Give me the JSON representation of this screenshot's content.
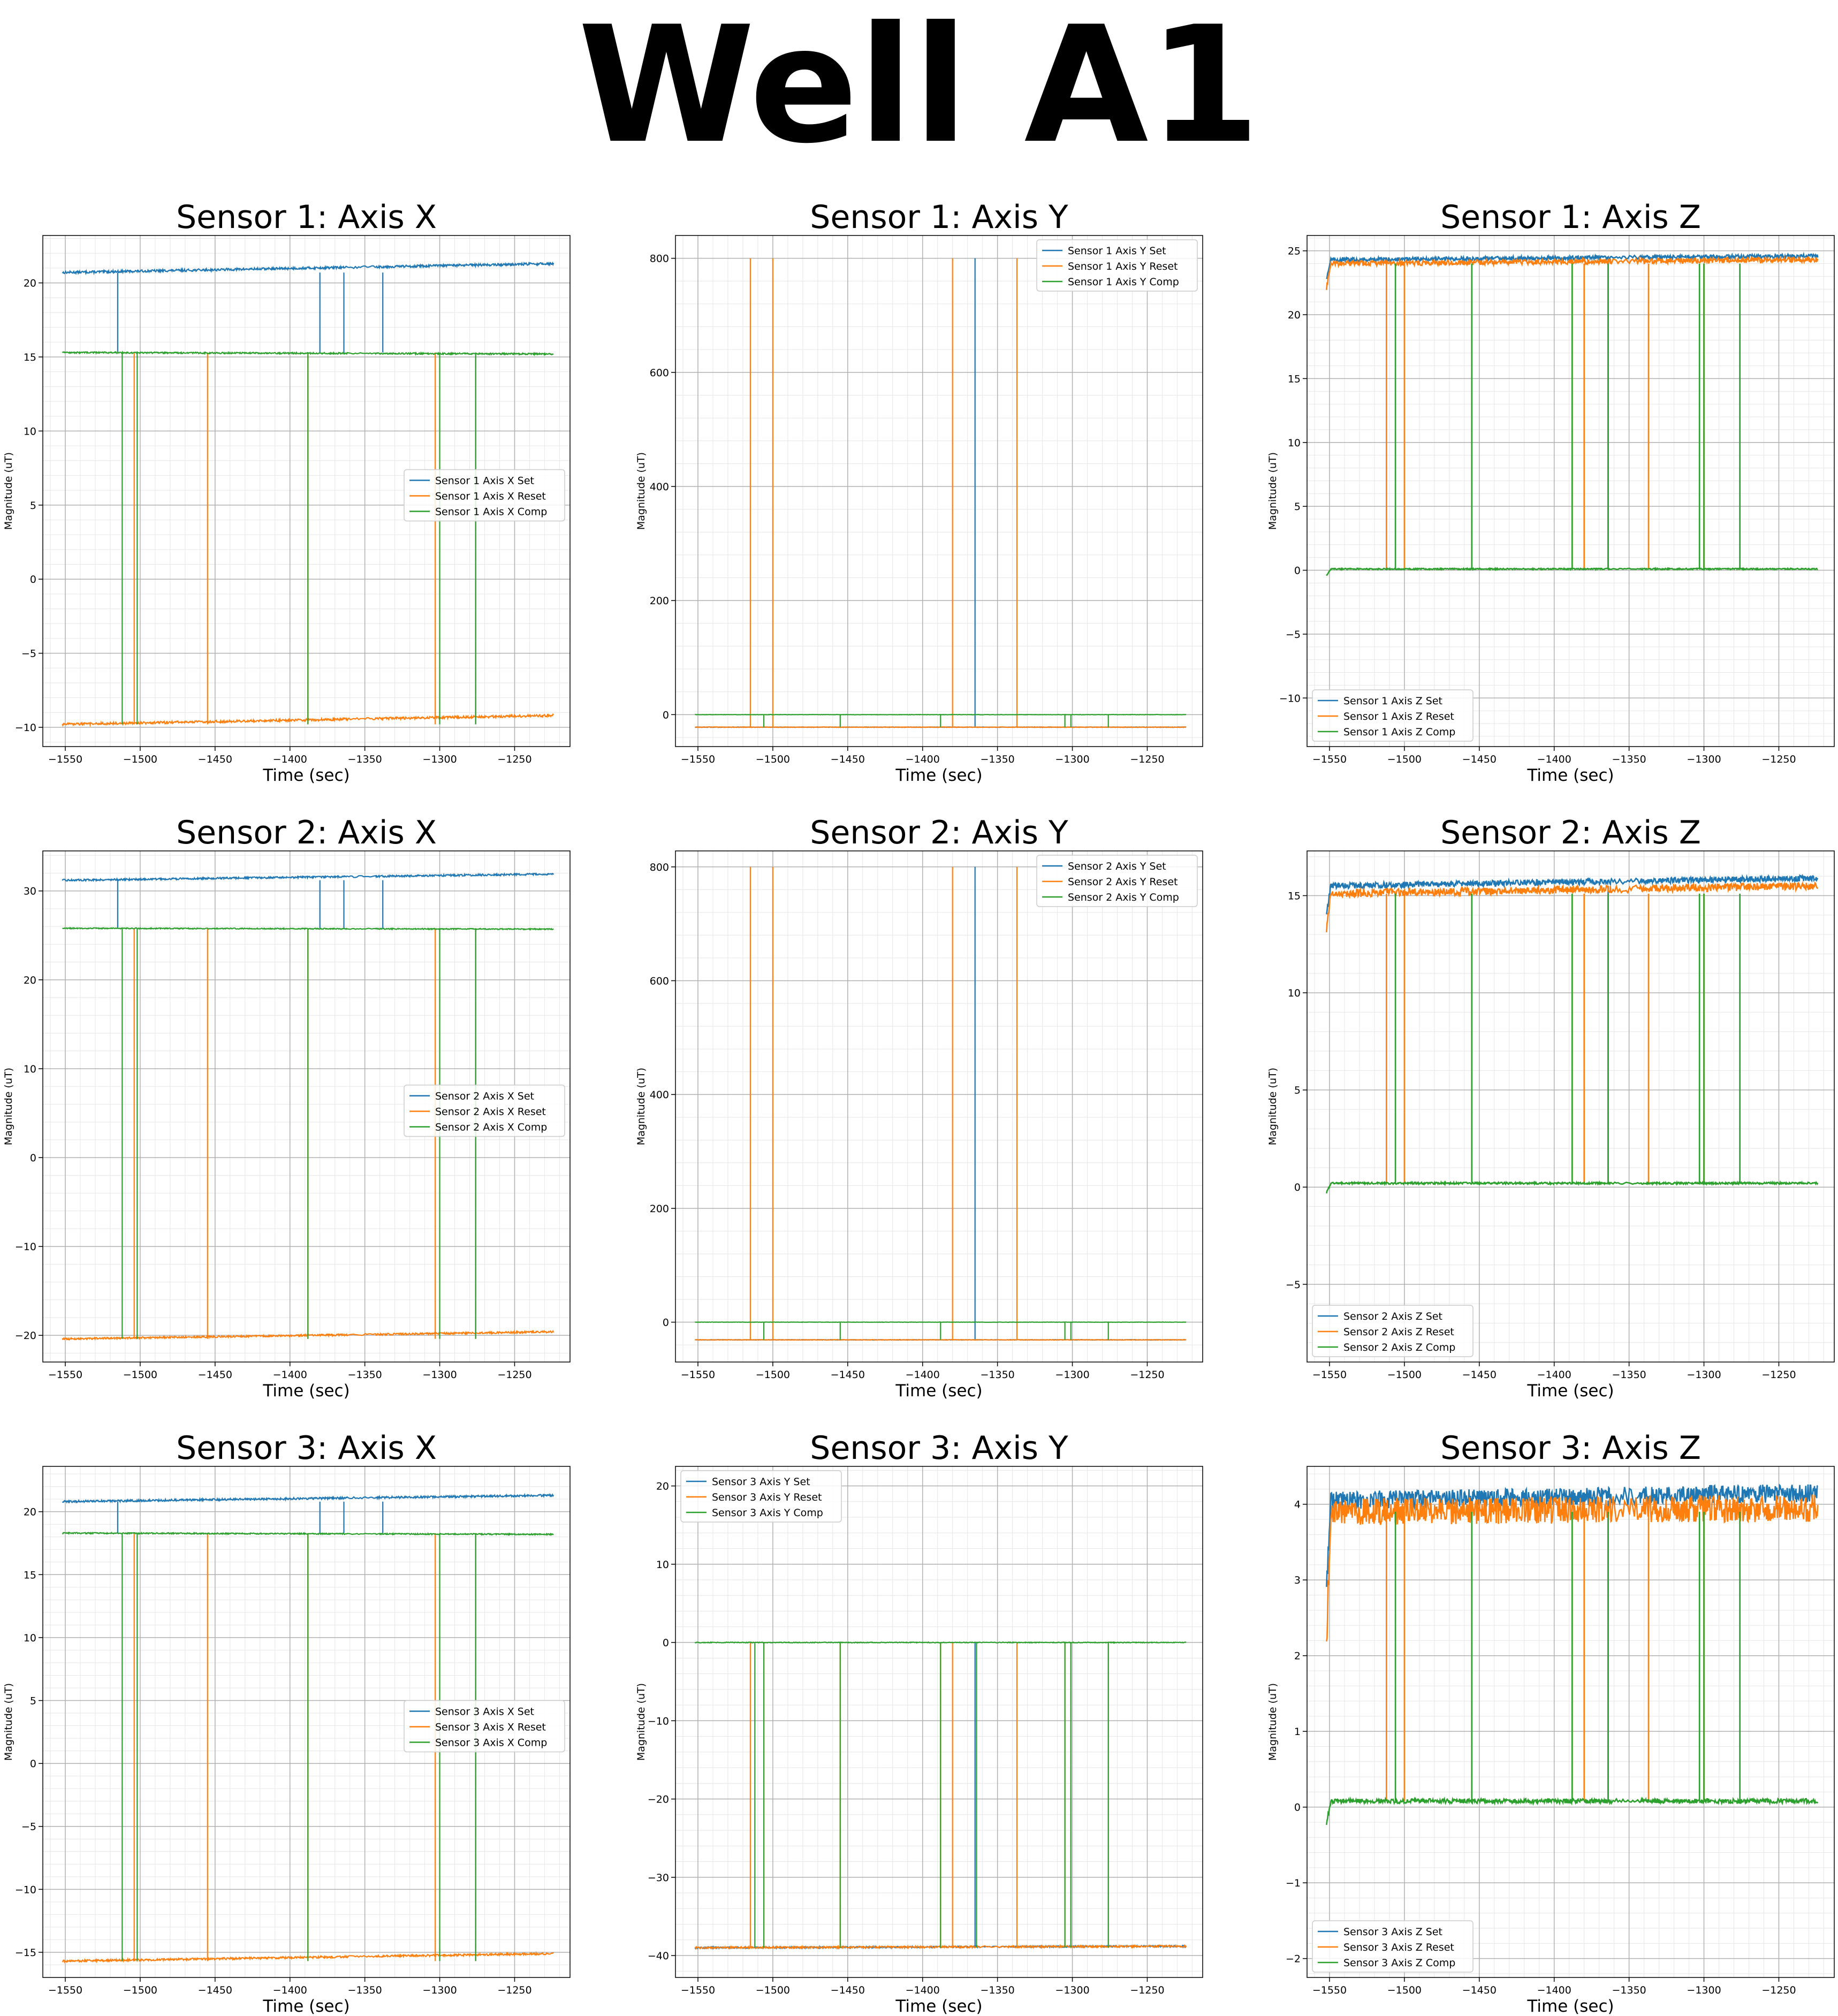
{
  "suptitle": "Well A1",
  "colors": {
    "set": "#1f77b4",
    "reset": "#ff7f0e",
    "comp": "#2ca02c"
  },
  "chart_data": [
    {
      "type": "line",
      "title": "Sensor 1: Axis X",
      "xlabel": "Time (sec)",
      "ylabel": "Magnitude (uT)",
      "xlim": [
        -1565,
        -1213
      ],
      "ylim": [
        -11.3,
        23.2
      ],
      "xticks": [
        -1550,
        -1500,
        -1450,
        -1400,
        -1350,
        -1300,
        -1250
      ],
      "yticks": [
        -10,
        -5,
        0,
        5,
        10,
        15,
        20
      ],
      "grid": true,
      "legend": "center-right",
      "spike_times": {
        "set": [
          -1515,
          -1380,
          -1364,
          -1338
        ],
        "reset": [
          -1504,
          -1455,
          -1388,
          -1303,
          -1276
        ],
        "comp": [
          -1512,
          -1502,
          -1388,
          -1300,
          -1276
        ]
      },
      "series": [
        {
          "name": "Sensor 1 Axis X Set",
          "color": "#1f77b4",
          "start": 20.7,
          "end": 21.3,
          "noise": 0.08
        },
        {
          "name": "Sensor 1 Axis X Reset",
          "color": "#ff7f0e",
          "start": -9.8,
          "end": -9.2,
          "noise": 0.08
        },
        {
          "name": "Sensor 1 Axis X Comp",
          "color": "#2ca02c",
          "start": 15.3,
          "end": 15.2,
          "noise": 0.05
        }
      ]
    },
    {
      "type": "line",
      "title": "Sensor 1: Axis Y",
      "xlabel": "Time (sec)",
      "ylabel": "Magnitude (uT)",
      "xlim": [
        -1565,
        -1213
      ],
      "ylim": [
        -56,
        840
      ],
      "xticks": [
        -1550,
        -1500,
        -1450,
        -1400,
        -1350,
        -1300,
        -1250
      ],
      "yticks": [
        0,
        200,
        400,
        600,
        800
      ],
      "grid": true,
      "legend": "upper-right",
      "spike_times": {
        "set": [
          -1365
        ],
        "reset": [
          -1515,
          -1500,
          -1380,
          -1337
        ],
        "comp": [
          -1506,
          -1455,
          -1388,
          -1305,
          -1301,
          -1276
        ]
      },
      "series": [
        {
          "name": "Sensor 1 Axis Y Set",
          "color": "#1f77b4",
          "start": -22,
          "end": -22,
          "noise": 0.4
        },
        {
          "name": "Sensor 1 Axis Y Reset",
          "color": "#ff7f0e",
          "start": -22,
          "end": -22,
          "noise": 0.4
        },
        {
          "name": "Sensor 1 Axis Y Comp",
          "color": "#2ca02c",
          "start": 0,
          "end": 0,
          "noise": 0.3
        }
      ]
    },
    {
      "type": "line",
      "title": "Sensor 1: Axis Z",
      "xlabel": "Time (sec)",
      "ylabel": "Magnitude (uT)",
      "xlim": [
        -1565,
        -1213
      ],
      "ylim": [
        -13.8,
        26.2
      ],
      "xticks": [
        -1550,
        -1500,
        -1450,
        -1400,
        -1350,
        -1300,
        -1250
      ],
      "yticks": [
        -10,
        -5,
        0,
        5,
        10,
        15,
        20,
        25
      ],
      "grid": true,
      "legend": "lower-left",
      "spike_times": {
        "set": [
          -1364
        ],
        "reset": [
          -1512,
          -1500,
          -1455,
          -1388,
          -1380,
          -1337,
          -1303,
          -1300,
          -1276
        ],
        "comp": [
          -1506,
          -1455,
          -1388,
          -1364,
          -1303,
          -1300,
          -1276
        ]
      },
      "series": [
        {
          "name": "Sensor 1 Axis Z Set",
          "color": "#1f77b4",
          "start": 24.3,
          "end": 24.6,
          "noise": 0.15
        },
        {
          "name": "Sensor 1 Axis Z Reset",
          "color": "#ff7f0e",
          "start": 24.0,
          "end": 24.3,
          "noise": 0.2
        },
        {
          "name": "Sensor 1 Axis Z Comp",
          "color": "#2ca02c",
          "start": 0.1,
          "end": 0.1,
          "noise": 0.05
        }
      ]
    },
    {
      "type": "line",
      "title": "Sensor 2: Axis X",
      "xlabel": "Time (sec)",
      "ylabel": "Magnitude (uT)",
      "xlim": [
        -1565,
        -1213
      ],
      "ylim": [
        -23.0,
        34.5
      ],
      "xticks": [
        -1550,
        -1500,
        -1450,
        -1400,
        -1350,
        -1300,
        -1250
      ],
      "yticks": [
        -20,
        -10,
        0,
        10,
        20,
        30
      ],
      "grid": true,
      "legend": "center-right",
      "spike_times": {
        "set": [
          -1515,
          -1380,
          -1364,
          -1338
        ],
        "reset": [
          -1504,
          -1455,
          -1388,
          -1303,
          -1276
        ],
        "comp": [
          -1512,
          -1502,
          -1388,
          -1300,
          -1276
        ]
      },
      "series": [
        {
          "name": "Sensor 2 Axis X Set",
          "color": "#1f77b4",
          "start": 31.2,
          "end": 31.9,
          "noise": 0.1
        },
        {
          "name": "Sensor 2 Axis X Reset",
          "color": "#ff7f0e",
          "start": -20.4,
          "end": -19.6,
          "noise": 0.1
        },
        {
          "name": "Sensor 2 Axis X Comp",
          "color": "#2ca02c",
          "start": 25.8,
          "end": 25.7,
          "noise": 0.06
        }
      ]
    },
    {
      "type": "line",
      "title": "Sensor 2: Axis Y",
      "xlabel": "Time (sec)",
      "ylabel": "Magnitude (uT)",
      "xlim": [
        -1565,
        -1213
      ],
      "ylim": [
        -70,
        828
      ],
      "xticks": [
        -1550,
        -1500,
        -1450,
        -1400,
        -1350,
        -1300,
        -1250
      ],
      "yticks": [
        0,
        200,
        400,
        600,
        800
      ],
      "grid": true,
      "legend": "upper-right",
      "spike_times": {
        "set": [
          -1365
        ],
        "reset": [
          -1515,
          -1500,
          -1380,
          -1337
        ],
        "comp": [
          -1506,
          -1455,
          -1388,
          -1305,
          -1301,
          -1276
        ]
      },
      "series": [
        {
          "name": "Sensor 2 Axis Y Set",
          "color": "#1f77b4",
          "start": -31,
          "end": -31,
          "noise": 0.4
        },
        {
          "name": "Sensor 2 Axis Y Reset",
          "color": "#ff7f0e",
          "start": -31,
          "end": -31,
          "noise": 0.4
        },
        {
          "name": "Sensor 2 Axis Y Comp",
          "color": "#2ca02c",
          "start": 0,
          "end": 0,
          "noise": 0.3
        }
      ]
    },
    {
      "type": "line",
      "title": "Sensor 2: Axis Z",
      "xlabel": "Time (sec)",
      "ylabel": "Magnitude (uT)",
      "xlim": [
        -1565,
        -1213
      ],
      "ylim": [
        -9.0,
        17.3
      ],
      "xticks": [
        -1550,
        -1500,
        -1450,
        -1400,
        -1350,
        -1300,
        -1250
      ],
      "yticks": [
        -5,
        0,
        5,
        10,
        15
      ],
      "grid": true,
      "legend": "lower-left",
      "spike_times": {
        "set": [
          -1364
        ],
        "reset": [
          -1512,
          -1500,
          -1455,
          -1388,
          -1380,
          -1337,
          -1303,
          -1300,
          -1276
        ],
        "comp": [
          -1506,
          -1455,
          -1388,
          -1364,
          -1303,
          -1300,
          -1276
        ]
      },
      "series": [
        {
          "name": "Sensor 2 Axis Z Set",
          "color": "#1f77b4",
          "start": 15.5,
          "end": 15.9,
          "noise": 0.15
        },
        {
          "name": "Sensor 2 Axis Z Reset",
          "color": "#ff7f0e",
          "start": 15.1,
          "end": 15.5,
          "noise": 0.2
        },
        {
          "name": "Sensor 2 Axis Z Comp",
          "color": "#2ca02c",
          "start": 0.2,
          "end": 0.2,
          "noise": 0.05
        }
      ]
    },
    {
      "type": "line",
      "title": "Sensor 3: Axis X",
      "xlabel": "Time (sec)",
      "ylabel": "Magnitude (uT)",
      "xlim": [
        -1565,
        -1213
      ],
      "ylim": [
        -17.0,
        23.6
      ],
      "xticks": [
        -1550,
        -1500,
        -1450,
        -1400,
        -1350,
        -1300,
        -1250
      ],
      "yticks": [
        -15,
        -10,
        -5,
        0,
        5,
        10,
        15,
        20
      ],
      "grid": true,
      "legend": "center-right",
      "spike_times": {
        "set": [
          -1515,
          -1380,
          -1364,
          -1338
        ],
        "reset": [
          -1504,
          -1455,
          -1388,
          -1303,
          -1276
        ],
        "comp": [
          -1512,
          -1502,
          -1388,
          -1300,
          -1276
        ]
      },
      "series": [
        {
          "name": "Sensor 3 Axis X Set",
          "color": "#1f77b4",
          "start": 20.8,
          "end": 21.3,
          "noise": 0.08
        },
        {
          "name": "Sensor 3 Axis X Reset",
          "color": "#ff7f0e",
          "start": -15.7,
          "end": -15.1,
          "noise": 0.08
        },
        {
          "name": "Sensor 3 Axis X Comp",
          "color": "#2ca02c",
          "start": 18.3,
          "end": 18.2,
          "noise": 0.05
        }
      ]
    },
    {
      "type": "line",
      "title": "Sensor 3: Axis Y",
      "xlabel": "Time (sec)",
      "ylabel": "Magnitude (uT)",
      "xlim": [
        -1565,
        -1213
      ],
      "ylim": [
        -42.8,
        22.5
      ],
      "xticks": [
        -1550,
        -1500,
        -1450,
        -1400,
        -1350,
        -1300,
        -1250
      ],
      "yticks": [
        -40,
        -30,
        -20,
        -10,
        0,
        10,
        20
      ],
      "grid": true,
      "legend": "upper-left",
      "spike_times": {
        "set": [
          -1365
        ],
        "reset": [
          -1515,
          -1506,
          -1455,
          -1388,
          -1380,
          -1337,
          -1305,
          -1301,
          -1276
        ],
        "comp": [
          -1512,
          -1506,
          -1455,
          -1388,
          -1364,
          -1305,
          -1301,
          -1276
        ]
      },
      "series": [
        {
          "name": "Sensor 3 Axis Y Set",
          "color": "#1f77b4",
          "start": -39.0,
          "end": -38.8,
          "noise": 0.1
        },
        {
          "name": "Sensor 3 Axis Y Reset",
          "color": "#ff7f0e",
          "start": -39.0,
          "end": -38.8,
          "noise": 0.12
        },
        {
          "name": "Sensor 3 Axis Y Comp",
          "color": "#2ca02c",
          "start": 0,
          "end": 0,
          "noise": 0.05
        }
      ]
    },
    {
      "type": "line",
      "title": "Sensor 3: Axis Z",
      "xlabel": "Time (sec)",
      "ylabel": "Magnitude (uT)",
      "xlim": [
        -1565,
        -1213
      ],
      "ylim": [
        -2.25,
        4.5
      ],
      "xticks": [
        -1550,
        -1500,
        -1450,
        -1400,
        -1350,
        -1300,
        -1250
      ],
      "yticks": [
        -2,
        -1,
        0,
        1,
        2,
        3,
        4
      ],
      "grid": true,
      "legend": "lower-left",
      "spike_times": {
        "set": [
          -1364
        ],
        "reset": [
          -1512,
          -1500,
          -1455,
          -1388,
          -1380,
          -1337,
          -1303,
          -1300,
          -1276
        ],
        "comp": [
          -1506,
          -1455,
          -1388,
          -1364,
          -1303,
          -1300,
          -1276
        ]
      },
      "series": [
        {
          "name": "Sensor 3 Axis Z Set",
          "color": "#1f77b4",
          "start": 4.05,
          "end": 4.15,
          "noise": 0.12
        },
        {
          "name": "Sensor 3 Axis Z Reset",
          "color": "#ff7f0e",
          "start": 3.9,
          "end": 3.95,
          "noise": 0.18
        },
        {
          "name": "Sensor 3 Axis Z Comp",
          "color": "#2ca02c",
          "start": 0.08,
          "end": 0.08,
          "noise": 0.03
        }
      ]
    }
  ]
}
